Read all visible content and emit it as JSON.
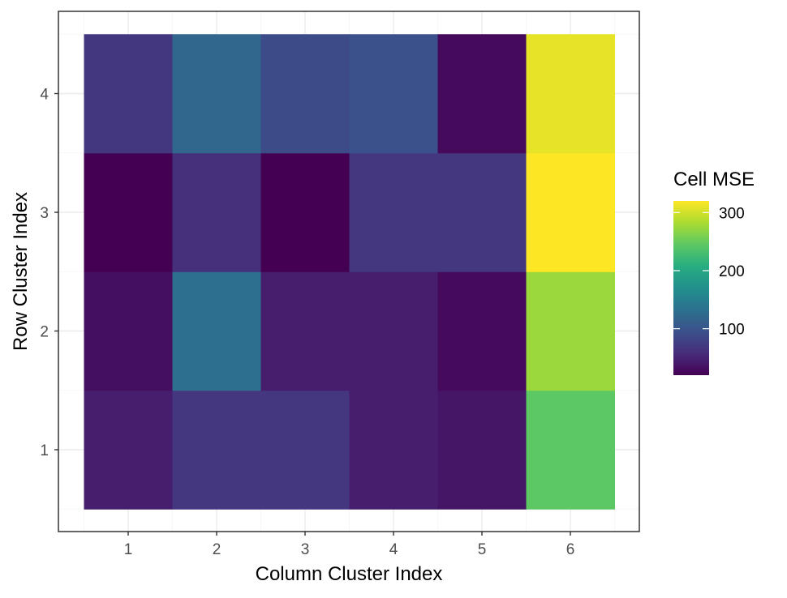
{
  "chart_data": {
    "type": "heatmap",
    "title": "",
    "xlabel": "Column Cluster Index",
    "ylabel": "Row Cluster Index",
    "x_categories": [
      "1",
      "2",
      "3",
      "4",
      "5",
      "6"
    ],
    "y_categories": [
      "1",
      "2",
      "3",
      "4"
    ],
    "values": [
      [
        45,
        68,
        68,
        45,
        38,
        245
      ],
      [
        32,
        130,
        45,
        45,
        28,
        275
      ],
      [
        20,
        62,
        20,
        68,
        68,
        320
      ],
      [
        70,
        120,
        90,
        95,
        28,
        310
      ]
    ],
    "legend": {
      "title": "Cell MSE",
      "ticks": [
        100,
        200,
        300
      ],
      "tick_labels": [
        "100",
        "200",
        "300"
      ],
      "range": [
        20,
        320
      ],
      "placement": "right"
    },
    "colormap": "viridis",
    "grid": true
  }
}
